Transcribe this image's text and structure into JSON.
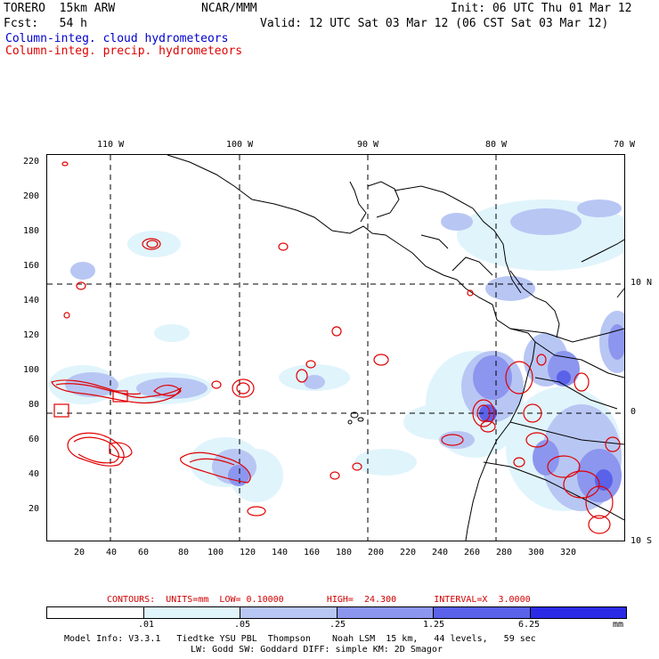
{
  "header": {
    "model": "TORERO  15km ARW",
    "org": "NCAR/MMM",
    "init": "Init: 06 UTC Thu 01 Mar 12",
    "fcst": "Fcst:   54 h",
    "valid": "Valid: 12 UTC Sat 03 Mar 12 (06 CST Sat 03 Mar 12)",
    "legend_cloud": "Column-integ. cloud hydrometeors",
    "legend_precip": "Column-integ. precip. hydrometeors"
  },
  "axes": {
    "top_lon": [
      "110 W",
      "100 W",
      "90 W",
      "80 W",
      "70 W"
    ],
    "right_lat": [
      "10 N",
      "0",
      "10 S"
    ],
    "left_ticks": [
      "220",
      "200",
      "180",
      "160",
      "140",
      "120",
      "100",
      "80",
      "60",
      "40",
      "20"
    ],
    "bottom_ticks": [
      "20",
      "40",
      "60",
      "80",
      "100",
      "120",
      "140",
      "160",
      "180",
      "200",
      "220",
      "240",
      "260",
      "280",
      "300",
      "320"
    ]
  },
  "contour_info": "CONTOURS:  UNITS=mm  LOW= 0.10000        HIGH=  24.300       INTERVAL=X  3.0000",
  "colorbar": {
    "labels": [
      ".01",
      ".05",
      ".25",
      "1.25",
      "6.25"
    ],
    "units": "mm",
    "colors": [
      "#ffffff",
      "#e0f4fc",
      "#b8c6f4",
      "#8c96ee",
      "#5a62ea",
      "#2b2be6"
    ]
  },
  "model_info": {
    "line1": "Model Info: V3.3.1   Tiedtke YSU PBL  Thompson    Noah LSM  15 km,   44 levels,   59 sec",
    "line2": "LW: Godd SW: Goddard DIFF: simple KM: 2D Smagor"
  }
}
